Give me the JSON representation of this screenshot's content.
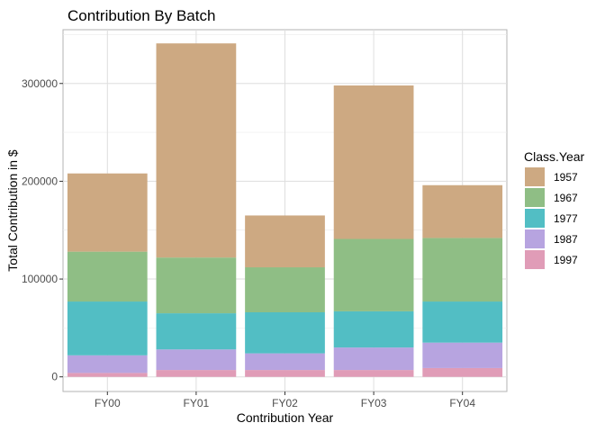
{
  "chart_data": {
    "type": "bar",
    "stacked": true,
    "title": "Contribution By Batch",
    "xlabel": "Contribution Year",
    "ylabel": "Total Contribution in $",
    "categories": [
      "FY00",
      "FY01",
      "FY02",
      "FY03",
      "FY04"
    ],
    "ylim": [
      -15000,
      355000
    ],
    "yticks": [
      0,
      100000,
      200000,
      300000
    ],
    "ytick_labels": [
      "0",
      "100000",
      "200000",
      "300000"
    ],
    "grid": true,
    "legend": {
      "title": "Class.Year",
      "position": "right"
    },
    "series": [
      {
        "name": "1997",
        "color": "#e09cb7",
        "values": [
          4000,
          7000,
          7000,
          7000,
          9000
        ]
      },
      {
        "name": "1987",
        "color": "#b7a4e0",
        "values": [
          18000,
          21000,
          17000,
          23000,
          26000
        ]
      },
      {
        "name": "1977",
        "color": "#52bec4",
        "values": [
          55000,
          37000,
          42000,
          37000,
          42000
        ]
      },
      {
        "name": "1967",
        "color": "#8fbe85",
        "values": [
          51000,
          57000,
          46000,
          74000,
          65000
        ]
      },
      {
        "name": "1957",
        "color": "#cda982",
        "values": [
          80000,
          219000,
          53000,
          157000,
          54000
        ]
      }
    ],
    "legend_order": [
      "1957",
      "1967",
      "1977",
      "1987",
      "1997"
    ]
  }
}
